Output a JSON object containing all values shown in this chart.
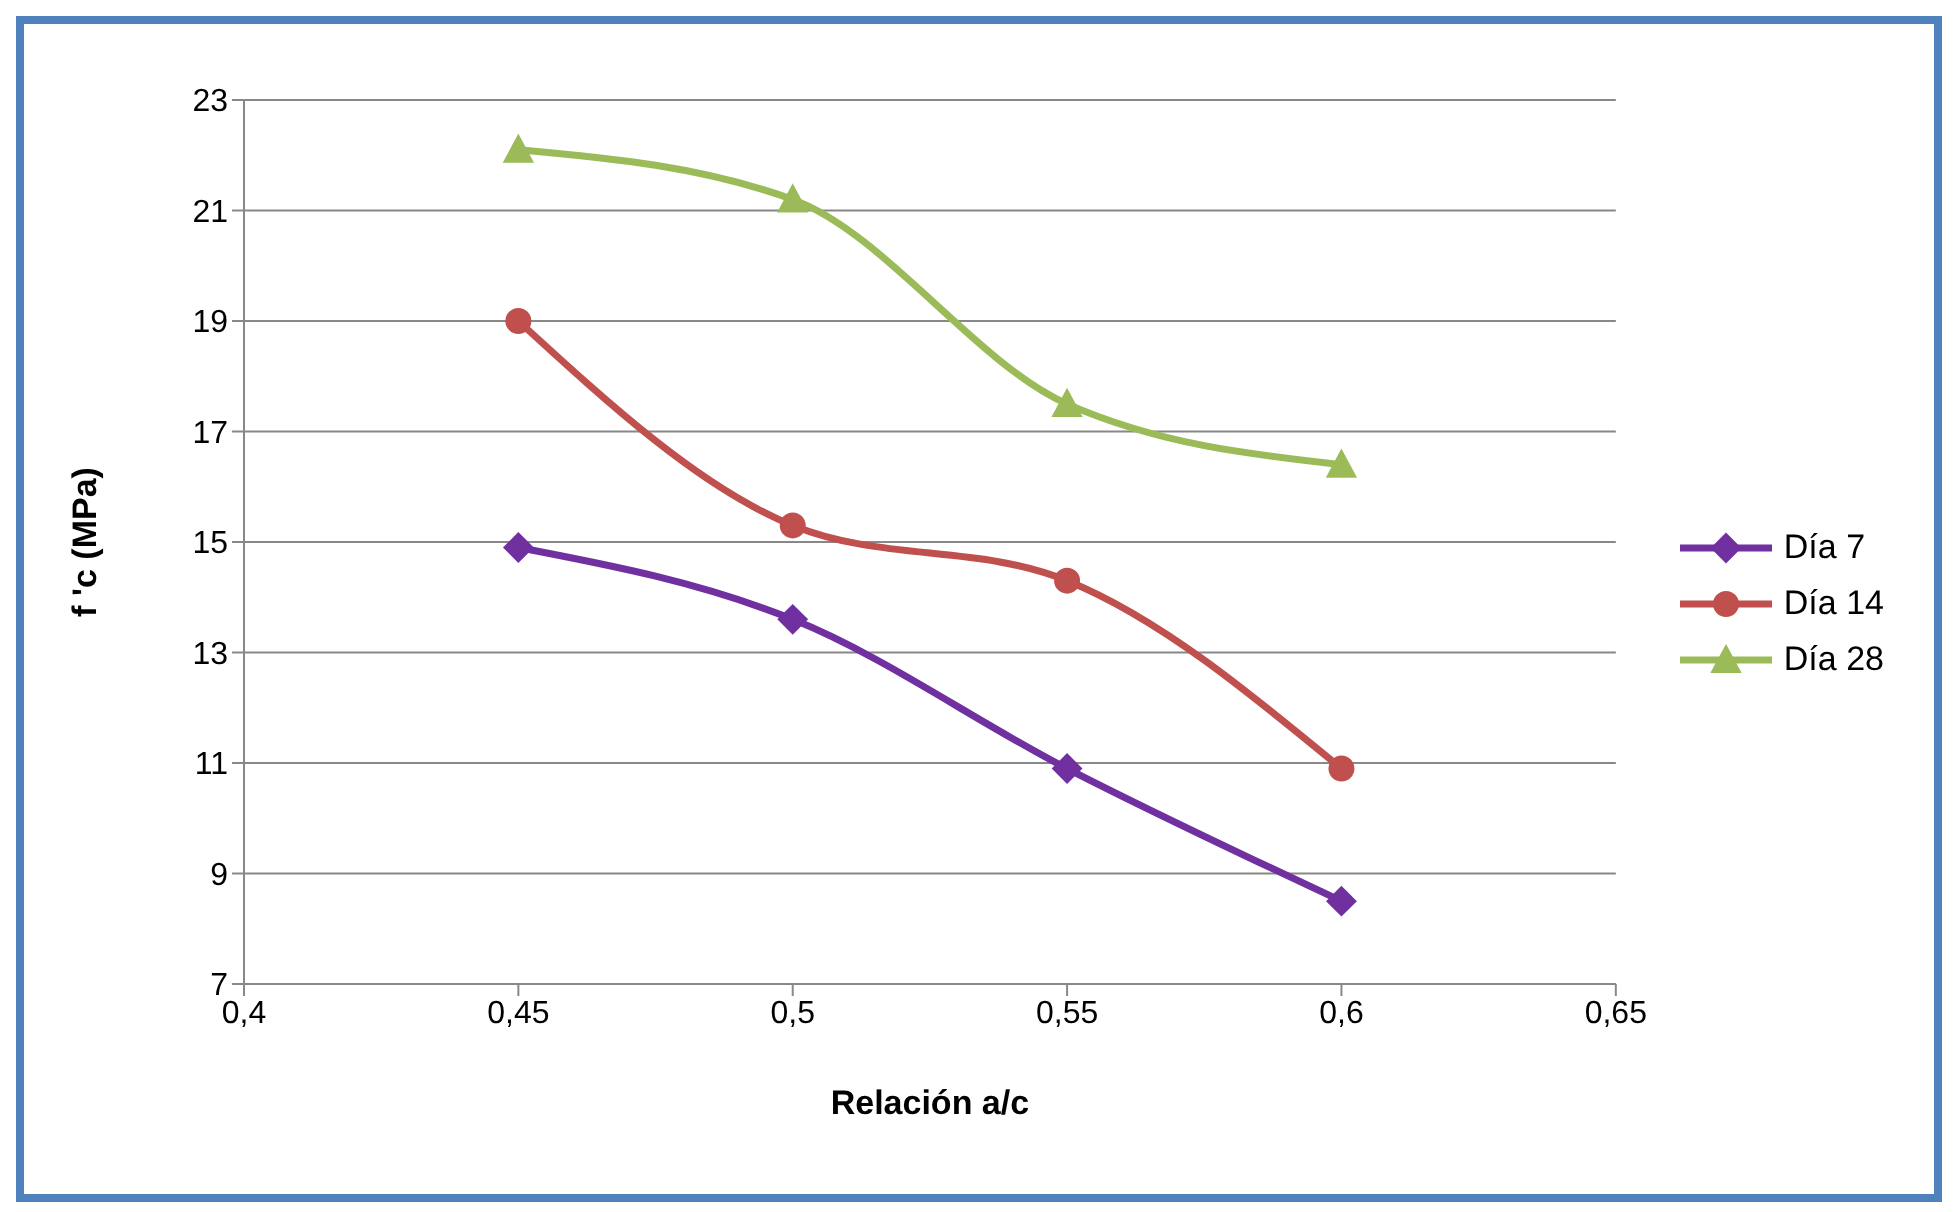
{
  "chart_data": {
    "type": "line",
    "xlabel": "Relación a/c",
    "ylabel": "f 'c (MPa)",
    "series": [
      {
        "name": "Día 7",
        "color": "#7030a0",
        "marker": "diamond",
        "x": [
          0.45,
          0.5,
          0.55,
          0.6
        ],
        "values": [
          14.9,
          13.6,
          10.9,
          8.5
        ]
      },
      {
        "name": "Día 14",
        "color": "#c0504d",
        "marker": "circle",
        "x": [
          0.45,
          0.5,
          0.55,
          0.6
        ],
        "values": [
          19.0,
          15.3,
          14.3,
          10.9
        ]
      },
      {
        "name": "Día 28",
        "color": "#9bbb59",
        "marker": "triangle",
        "x": [
          0.45,
          0.5,
          0.55,
          0.6
        ],
        "values": [
          22.1,
          21.2,
          17.5,
          16.4
        ]
      }
    ],
    "xlim": [
      0.4,
      0.65
    ],
    "xticks": [
      {
        "value": 0.4,
        "label": "0,4"
      },
      {
        "value": 0.45,
        "label": "0,45"
      },
      {
        "value": 0.5,
        "label": "0,5"
      },
      {
        "value": 0.55,
        "label": "0,55"
      },
      {
        "value": 0.6,
        "label": "0,6"
      },
      {
        "value": 0.65,
        "label": "0,65"
      }
    ],
    "ylim": [
      7,
      23
    ],
    "yticks": [
      7,
      9,
      11,
      13,
      15,
      17,
      19,
      21,
      23
    ],
    "grid": "y",
    "legend": "right",
    "line_style": "solid"
  }
}
